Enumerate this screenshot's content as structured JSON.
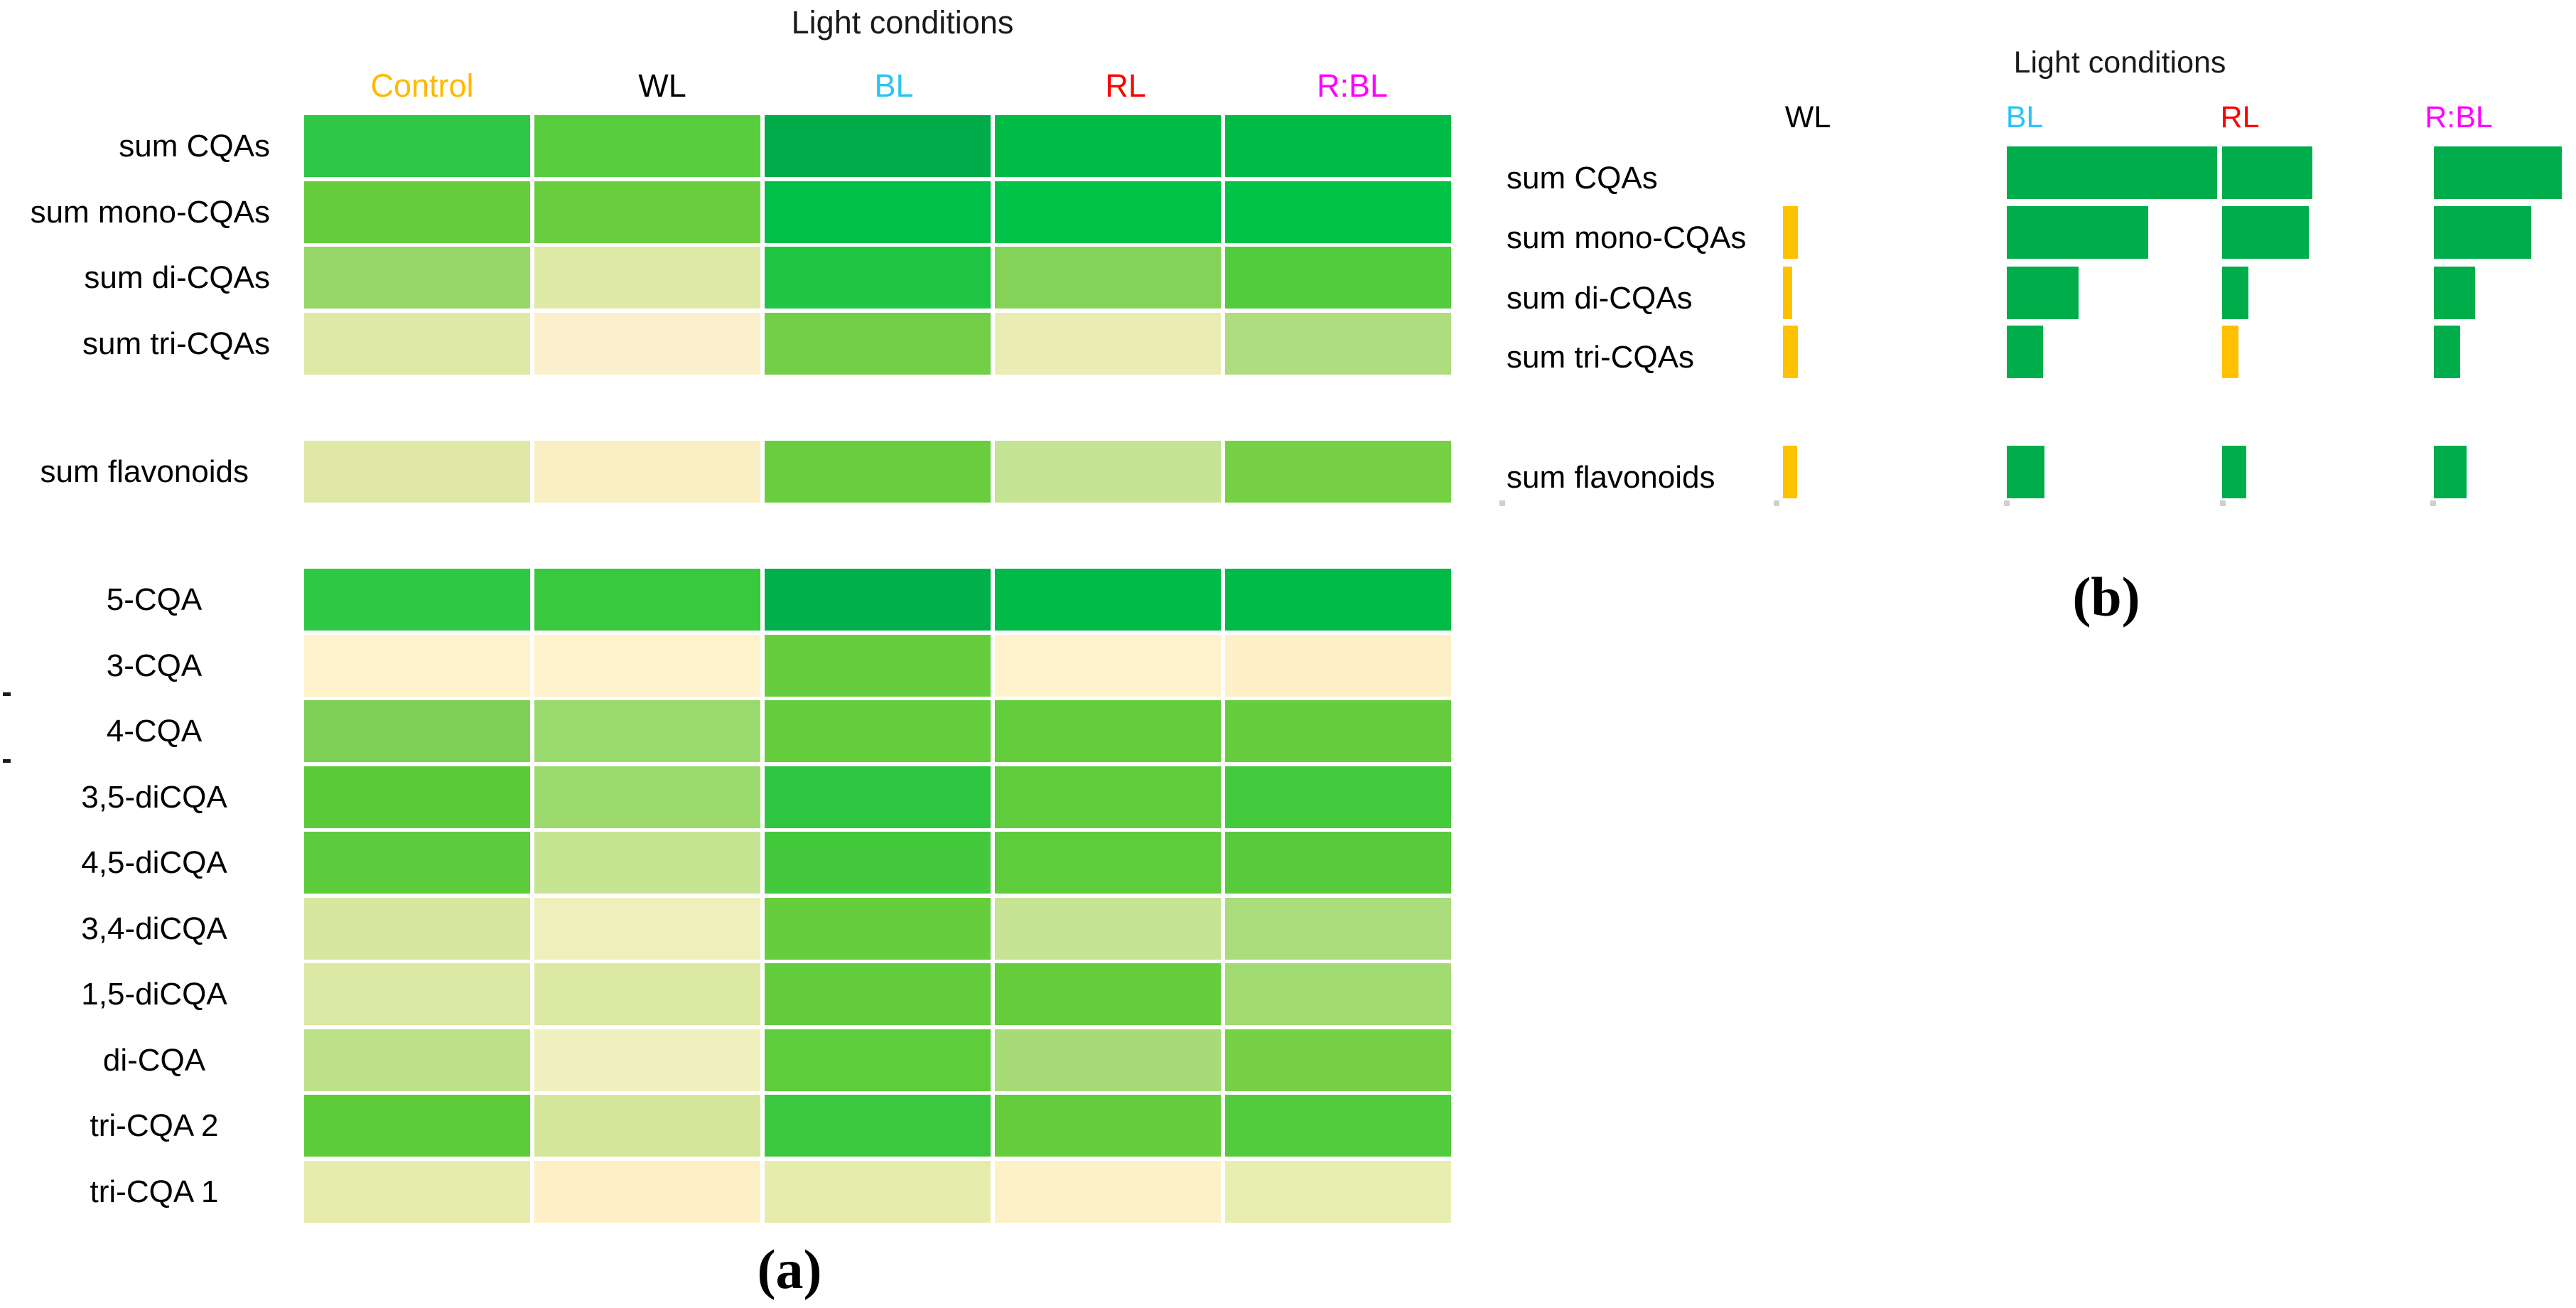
{
  "figure": {
    "description": "Heatmap (a) and proportional bar panel (b) of caffeoylquinic acids and flavonoids under different light conditions"
  },
  "chart_data": [
    {
      "type": "heatmap",
      "title": "Light conditions",
      "caption": "(a)",
      "columns": [
        "Control",
        "WL",
        "BL",
        "RL",
        "R:BL"
      ],
      "column_label_colors": [
        "#FFB900",
        "#000000",
        "#29C4F6",
        "#FF0000",
        "#FF00FF"
      ],
      "colorscale_note": "strong green = high relative level, pale cream = low relative level",
      "colorscale": {
        "high": "#00B050",
        "low": "#FDF2CC"
      },
      "row_groups": [
        {
          "rows": [
            "sum CQAs",
            "sum mono-CQAs",
            "sum di-CQAs",
            "sum tri-CQAs"
          ],
          "cell_colors": [
            [
              "#2FC746",
              "#58CD3E",
              "#00AB4A",
              "#00BC47",
              "#00BC47"
            ],
            [
              "#66CE3D",
              "#68CE3E",
              "#00C047",
              "#00C347",
              "#00C347"
            ],
            [
              "#98D76A",
              "#DFE9A6",
              "#20C543",
              "#85D259",
              "#52CB3D"
            ],
            [
              "#DFE9A6",
              "#FBF0CB",
              "#72CF47",
              "#E9EDB4",
              "#AFDC7E"
            ]
          ]
        },
        {
          "rows": [
            "sum flavonoids"
          ],
          "cell_colors": [
            [
              "#DFE9A5",
              "#F9EFC3",
              "#69CE3E",
              "#C5E493",
              "#76D044"
            ]
          ]
        },
        {
          "rows": [
            "5-CQA",
            "3-CQA",
            "4-CQA",
            "3,5-diCQA",
            "4,5-diCQA",
            "3,4-diCQA",
            "1,5-diCQA",
            "di-CQA",
            "tri-CQA 2",
            "tri-CQA 1"
          ],
          "cell_colors": [
            [
              "#2FC844",
              "#38C93F",
              "#00B14B",
              "#00BB48",
              "#00BB48"
            ],
            [
              "#FDF2CC",
              "#FDF2CC",
              "#66CE3C",
              "#FDF2CC",
              "#FDF0C8"
            ],
            [
              "#7ED156",
              "#9AD96B",
              "#63CD3C",
              "#63CD3C",
              "#66CD3E"
            ],
            [
              "#5CCB3A",
              "#9CDA6D",
              "#2EC641",
              "#60CC3C",
              "#44CA3D"
            ],
            [
              "#5ECB3C",
              "#C6E491",
              "#44C93D",
              "#5ECC3B",
              "#58CB3C"
            ],
            [
              "#D7E79F",
              "#EEF0BC",
              "#66CD3D",
              "#C6E494",
              "#ABDC7C"
            ],
            [
              "#DCE9A4",
              "#DBE8A2",
              "#62CC3C",
              "#66CD3C",
              "#A2DA72"
            ],
            [
              "#BCE189",
              "#EFF0BE",
              "#5FCC3B",
              "#A6DB77",
              "#77D146"
            ],
            [
              "#5ECB38",
              "#D4E69A",
              "#3CC83E",
              "#66CD3C",
              "#52CB3E"
            ],
            [
              "#E6ECAB",
              "#FDF0C6",
              "#E6ECAB",
              "#FDF1C8",
              "#E8EDB0"
            ]
          ]
        }
      ]
    },
    {
      "type": "bar",
      "title": "Light conditions",
      "caption": "(b)",
      "columns": [
        "WL",
        "BL",
        "RL",
        "R:BL"
      ],
      "column_label_colors": [
        "#000000",
        "#29C4F6",
        "#FF0000",
        "#FF00FF"
      ],
      "categories": [
        "sum CQAs",
        "sum mono-CQAs",
        "sum di-CQAs",
        "sum tri-CQAs",
        "sum flavonoids"
      ],
      "value_note": "bar length as fraction of the longest bar (BL, sum CQAs)",
      "series": [
        {
          "name": "WL",
          "values": [
            0,
            0.071,
            0.044,
            0.071,
            0.068
          ],
          "bar_colors": [
            null,
            "#FFC000",
            "#FFC000",
            "#FFC000",
            "#FFC000"
          ]
        },
        {
          "name": "BL",
          "values": [
            1.0,
            0.672,
            0.341,
            0.172,
            0.179
          ],
          "bar_colors": [
            "#00AD4B",
            "#00AD4B",
            "#00AD4B",
            "#00AD4B",
            "#00AD4B"
          ]
        },
        {
          "name": "RL",
          "values": [
            0.429,
            0.412,
            0.125,
            0.078,
            0.115
          ],
          "bar_colors": [
            "#00AD4B",
            "#00AD4B",
            "#00AD4B",
            "#FFC000",
            "#00AD4B"
          ]
        },
        {
          "name": "R:BL",
          "values": [
            0.608,
            0.463,
            0.196,
            0.125,
            0.155
          ],
          "bar_colors": [
            "#00AD4B",
            "#00AD4B",
            "#00AD4B",
            "#00AD4B",
            "#00AD4B"
          ]
        }
      ]
    }
  ]
}
